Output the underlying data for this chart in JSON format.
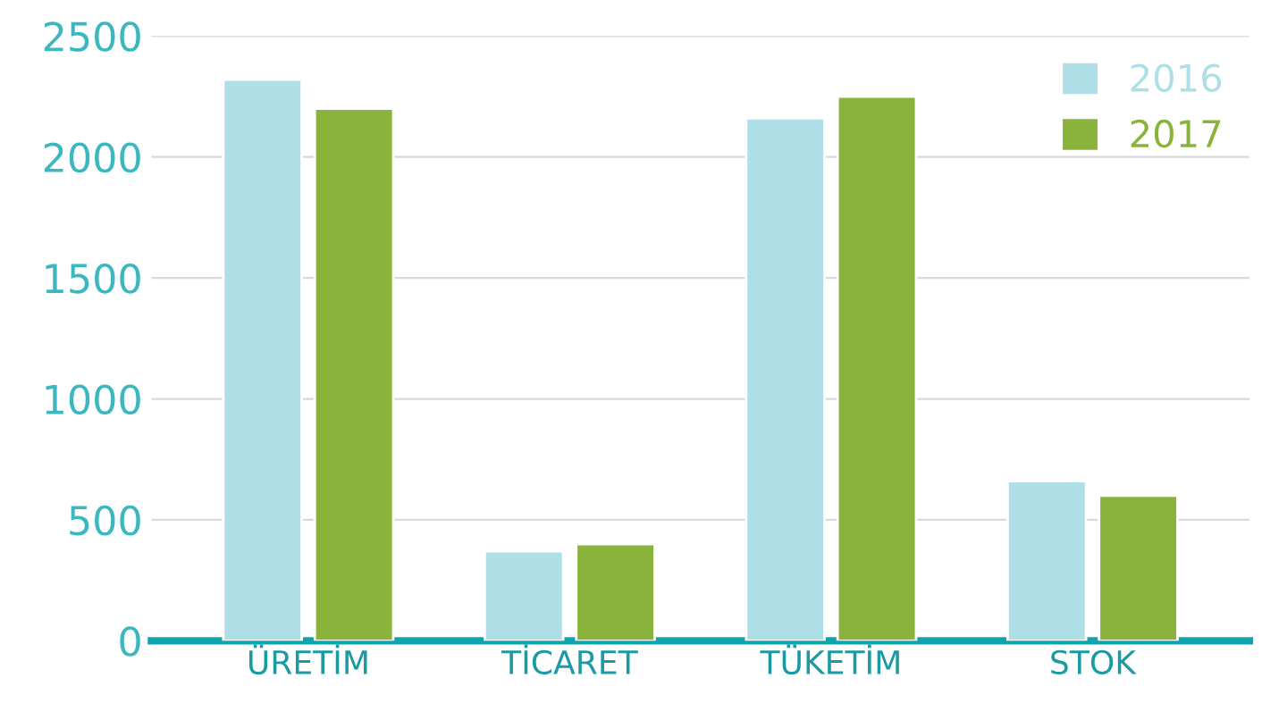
{
  "chart_data": {
    "type": "bar",
    "categories": [
      "ÜRETİM",
      "TİCARET",
      "TÜKETİM",
      "STOK"
    ],
    "series": [
      {
        "name": "2016",
        "color": "#afdfe6",
        "values": [
          2320,
          370,
          2160,
          660
        ]
      },
      {
        "name": "2017",
        "color": "#8ab33c",
        "values": [
          2200,
          400,
          2250,
          600
        ]
      }
    ],
    "ylim": [
      0,
      2500
    ],
    "yticks": [
      0,
      500,
      1000,
      1500,
      2000,
      2500
    ],
    "grid": "y",
    "legend": "top right"
  }
}
